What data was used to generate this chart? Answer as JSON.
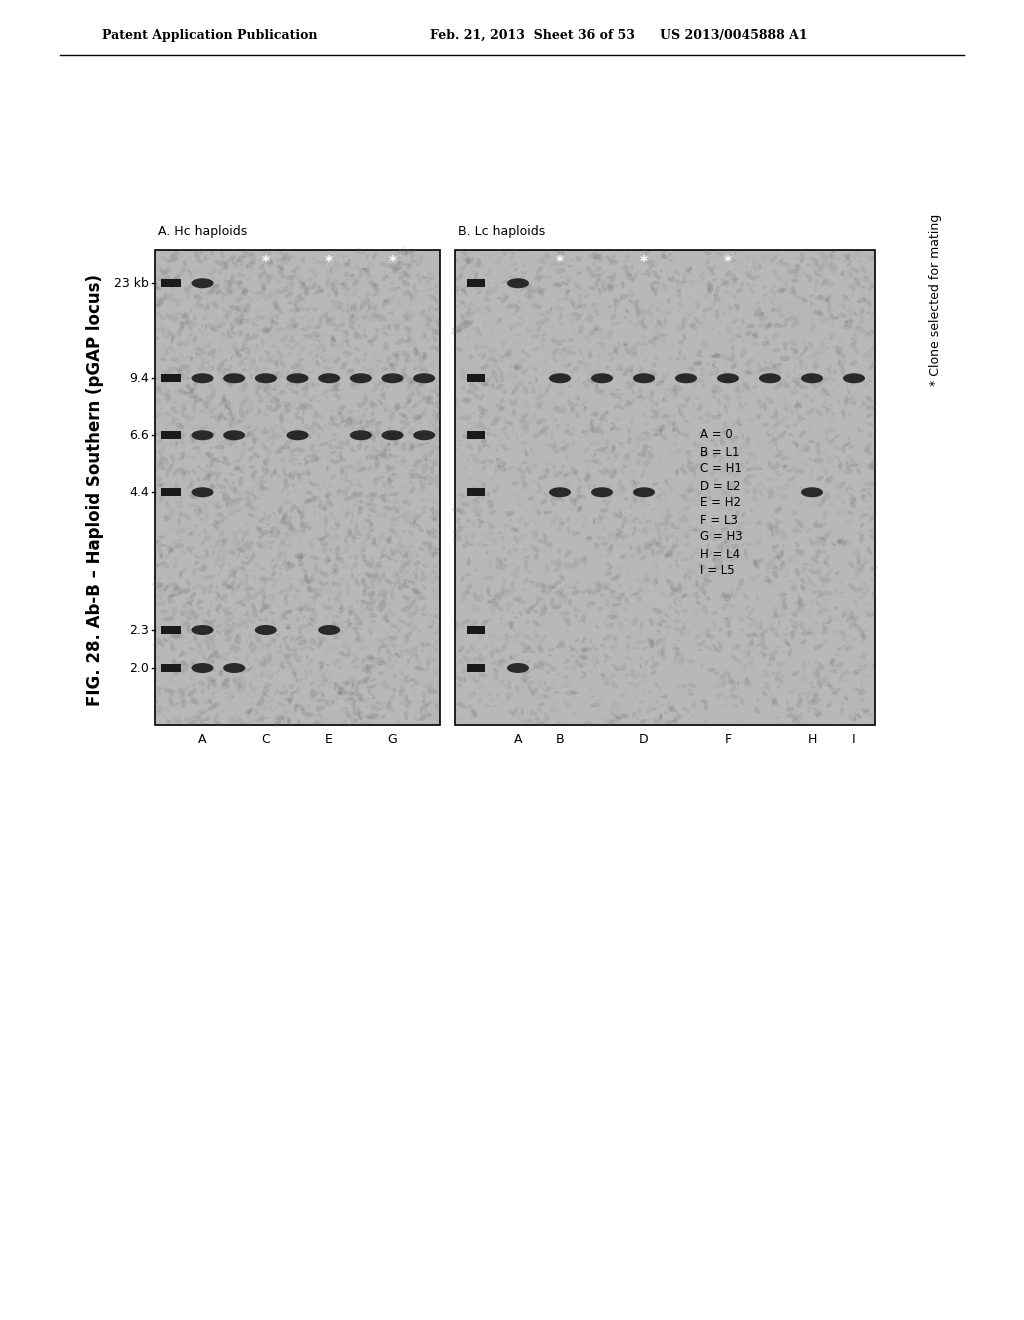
{
  "page_header_left": "Patent Application Publication",
  "page_header_mid": "Feb. 21, 2013  Sheet 36 of 53",
  "page_header_right": "US 2013/0045888 A1",
  "fig_title": "FIG. 28. Ab-B – Haploid Southern (pGAP locus)",
  "panel_A_label": "A. Hc haploids",
  "panel_B_label": "B. Lc haploids",
  "y_axis_labels": [
    "23 kb",
    "9.4",
    "6.6",
    "4.4",
    "2.3",
    "2.0"
  ],
  "y_axis_positions": [
    0.93,
    0.73,
    0.61,
    0.49,
    0.2,
    0.12
  ],
  "legend_lines": [
    "A = 0",
    "B = L1",
    "C = H1",
    "D = L2",
    "E = H2",
    "F = L3",
    "G = H3",
    "H = L4",
    "I = L5"
  ],
  "footnote": "* Clone selected for mating",
  "panel_bg": "#b8b8b8"
}
